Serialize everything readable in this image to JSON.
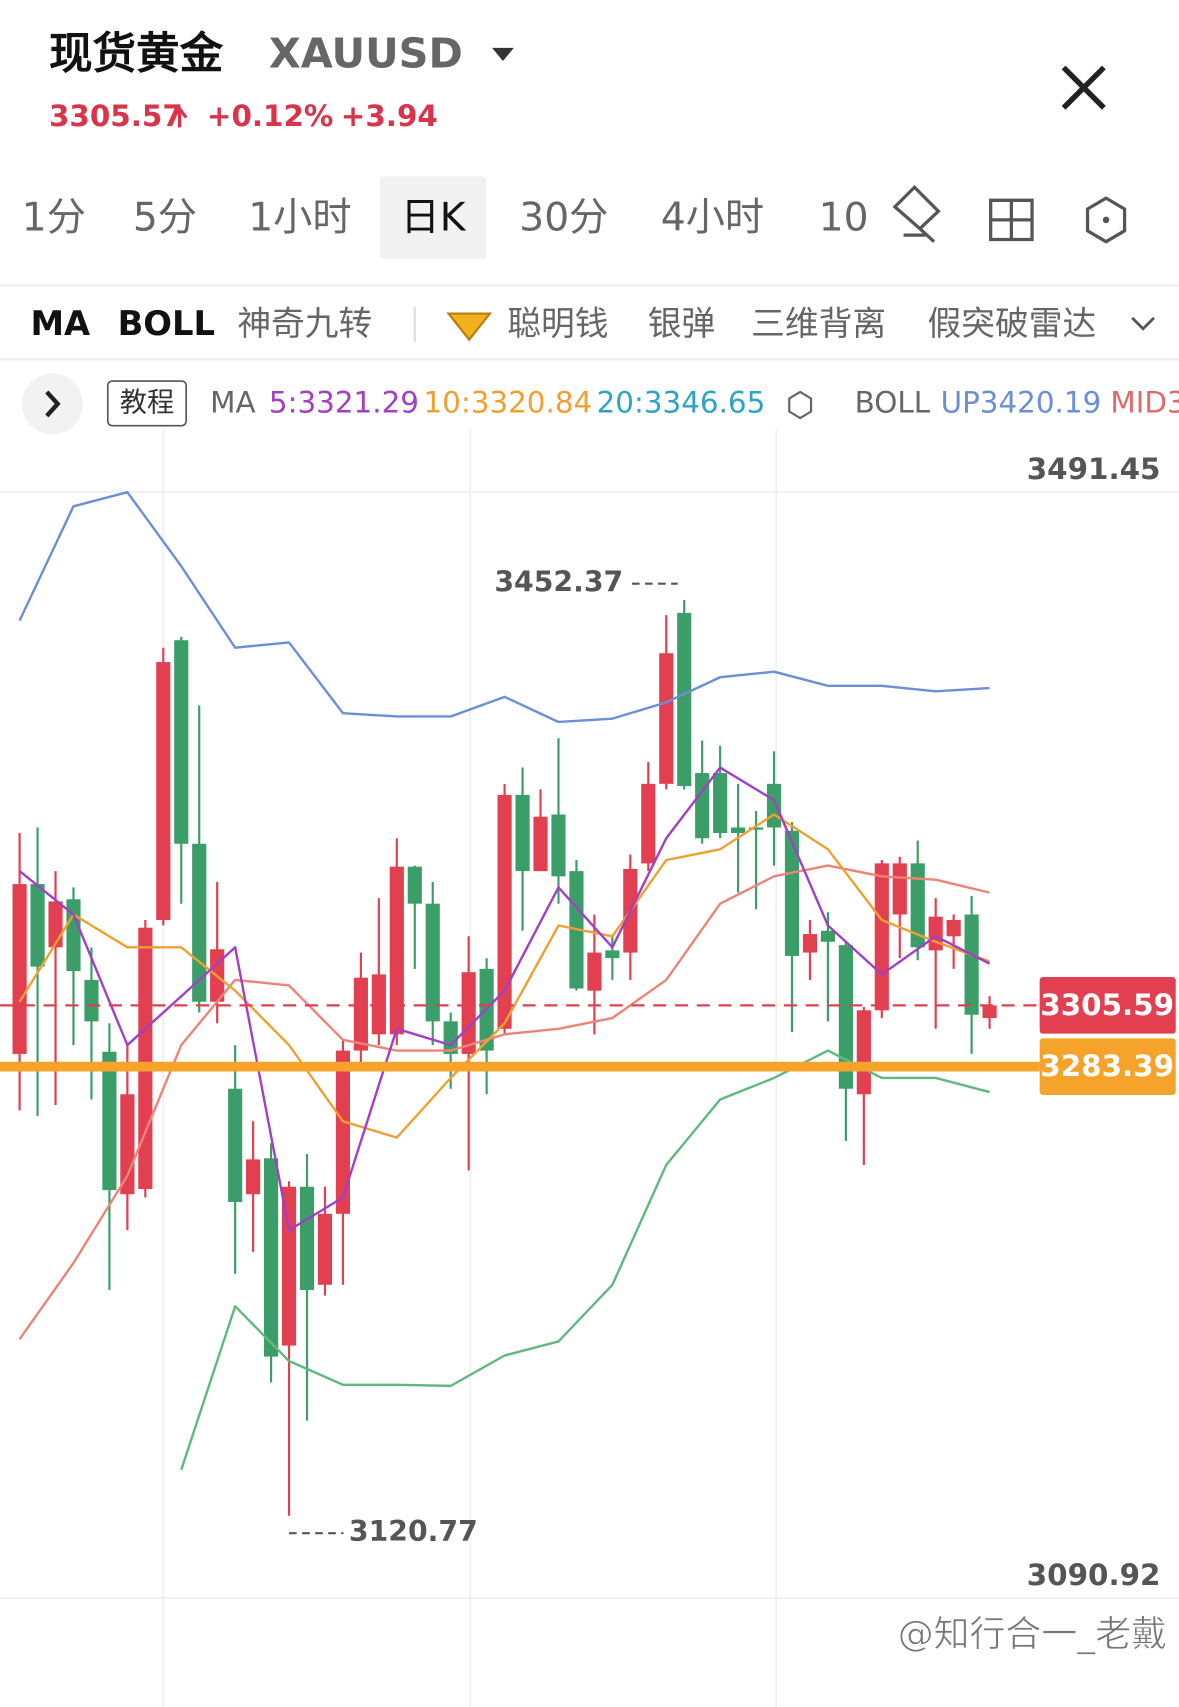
{
  "header": {
    "title": "现货黄金",
    "symbol": "XAUUSD",
    "price": "3305.57",
    "change_pct": "+0.12%",
    "change": "+3.94"
  },
  "tabs": [
    "1分",
    "5分",
    "1小时",
    "日K",
    "30分",
    "4小时",
    "10"
  ],
  "indicators": [
    "MA",
    "BOLL",
    "神奇九转",
    "聪明钱",
    "银弹",
    "三维背离",
    "假突破雷达"
  ],
  "legend_bar": {
    "tutorial": "教程",
    "ma_label": "MA",
    "ma": [
      {
        "label": "5:3321.29",
        "color": "#a23fc4"
      },
      {
        "label": "10:3320.84",
        "color": "#f0a030"
      },
      {
        "label": "20:3346.65",
        "color": "#2ea3c4"
      }
    ],
    "boll_label": "BOLL",
    "boll": [
      {
        "label": "UP3420.19",
        "color": "#6b8fd6"
      },
      {
        "label": "MID3",
        "color": "#e06a6a"
      }
    ]
  },
  "chart_data": {
    "type": "candlestick",
    "up_color": "#e23f51",
    "down_color": "#3b9e68",
    "ylim": [
      3051.52,
      3511.95
    ],
    "yticks": [
      3090.92,
      3491.45
    ],
    "ohlc": [
      [
        3288.0,
        3368.0,
        3267.5,
        3349.5
      ],
      [
        3349.5,
        3370.0,
        3265.5,
        3319.6
      ],
      [
        3326.6,
        3354.2,
        3269.5,
        3343.2
      ],
      [
        3344.0,
        3348.3,
        3291.2,
        3318.0
      ],
      [
        3314.8,
        3326.6,
        3271.5,
        3299.8
      ],
      [
        3288.8,
        3299.1,
        3202.5,
        3238.7
      ],
      [
        3237.2,
        3291.2,
        3224.2,
        3273.4
      ],
      [
        3239.1,
        3336.5,
        3236.0,
        3333.7
      ],
      [
        3336.5,
        3435.1,
        3334.5,
        3429.9
      ],
      [
        3437.8,
        3439.0,
        3342.4,
        3364.1
      ],
      [
        3364.1,
        3414.2,
        3303.0,
        3306.9
      ],
      [
        3306.9,
        3350.3,
        3299.1,
        3325.9
      ],
      [
        3275.4,
        3291.2,
        3208.4,
        3234.4
      ],
      [
        3237.2,
        3263.6,
        3216.3,
        3249.8
      ],
      [
        3250.2,
        3255.7,
        3169.0,
        3178.4
      ],
      [
        3182.4,
        3241.9,
        3120.77,
        3239.9
      ],
      [
        3239.9,
        3251.7,
        3155.2,
        3202.5
      ],
      [
        3204.4,
        3239.9,
        3200.5,
        3230.1
      ],
      [
        3230.1,
        3293.1,
        3204.4,
        3289.2
      ],
      [
        3289.2,
        3324.7,
        3283.3,
        3315.6
      ],
      [
        3295.1,
        3344.4,
        3291.2,
        3316.8
      ],
      [
        3295.1,
        3366.1,
        3291.2,
        3355.8
      ],
      [
        3355.8,
        3356.2,
        3318.8,
        3342.4
      ],
      [
        3342.4,
        3350.3,
        3291.2,
        3299.8
      ],
      [
        3299.8,
        3303.0,
        3275.4,
        3288.0
      ],
      [
        3288.0,
        3330.6,
        3245.8,
        3317.6
      ],
      [
        3318.8,
        3322.7,
        3273.4,
        3289.2
      ],
      [
        3297.1,
        3385.8,
        3295.1,
        3381.8
      ],
      [
        3381.8,
        3391.7,
        3332.6,
        3354.2
      ],
      [
        3354.2,
        3383.8,
        3354.2,
        3373.9
      ],
      [
        3374.7,
        3402.3,
        3342.4,
        3352.3
      ],
      [
        3354.2,
        3358.2,
        3310.9,
        3311.7
      ],
      [
        3310.9,
        3338.5,
        3295.1,
        3324.7
      ],
      [
        3325.5,
        3330.6,
        3314.8,
        3322.7
      ],
      [
        3324.7,
        3360.2,
        3314.8,
        3355.0
      ],
      [
        3357.0,
        3393.7,
        3354.2,
        3385.8
      ],
      [
        3385.8,
        3446.9,
        3383.8,
        3433.1
      ],
      [
        3447.7,
        3452.37,
        3383.8,
        3385.0
      ],
      [
        3389.7,
        3401.5,
        3364.1,
        3366.1
      ],
      [
        3389.7,
        3399.6,
        3366.1,
        3368.0
      ],
      [
        3370.0,
        3385.8,
        3346.4,
        3368.0
      ],
      [
        3370.0,
        3375.9,
        3340.4,
        3369.2
      ],
      [
        3385.8,
        3397.6,
        3356.2,
        3370.0
      ],
      [
        3368.8,
        3372.0,
        3295.9,
        3323.5
      ],
      [
        3324.7,
        3336.5,
        3314.8,
        3331.4
      ],
      [
        3332.6,
        3339.3,
        3299.8,
        3328.6
      ],
      [
        3327.4,
        3328.6,
        3256.5,
        3275.4
      ],
      [
        3273.4,
        3305.0,
        3247.8,
        3303.8
      ],
      [
        3303.8,
        3358.2,
        3301.0,
        3357.0
      ],
      [
        3338.5,
        3359.4,
        3322.7,
        3357.0
      ],
      [
        3357.0,
        3365.3,
        3321.9,
        3326.6
      ],
      [
        3325.5,
        3344.4,
        3297.1,
        3337.7
      ],
      [
        3330.6,
        3338.5,
        3318.8,
        3336.5
      ],
      [
        3338.5,
        3345.2,
        3288.0,
        3302.2
      ],
      [
        3301.0,
        3308.9,
        3297.1,
        3305.57
      ]
    ],
    "series": [
      {
        "color": "#6b8fd6",
        "x": [
          0,
          3,
          6,
          9,
          12,
          15,
          18,
          21,
          24,
          27,
          30,
          33,
          36,
          39,
          42,
          45,
          48,
          51,
          54
        ],
        "values": [
          3444.9,
          3486.3,
          3491.4,
          3464.6,
          3435.1,
          3437.0,
          3411.4,
          3410.2,
          3410.2,
          3417.3,
          3408.2,
          3409.4,
          3415.3,
          3424.4,
          3426.4,
          3421.3,
          3421.3,
          3419.3,
          3420.5
        ]
      },
      {
        "color": "#5fb97e",
        "x": [
          0,
          3,
          6,
          9,
          12,
          15,
          18,
          21,
          24,
          27,
          30,
          33,
          36,
          39,
          42,
          45,
          48,
          51,
          54
        ],
        "values": [
          null,
          null,
          null,
          3137.4,
          3196.6,
          3176.8,
          3168.2,
          3168.2,
          3167.8,
          3178.8,
          3183.9,
          3204.4,
          3247.8,
          3271.5,
          3279.3,
          3289.2,
          3279.3,
          3279.3,
          3274.2
        ]
      },
      {
        "color": "#ec8478",
        "x": [
          0,
          3,
          6,
          9,
          12,
          15,
          18,
          21,
          24,
          27,
          30,
          33,
          36,
          39,
          42,
          45,
          48,
          51,
          54
        ],
        "values": [
          3184.7,
          3212.3,
          3243.9,
          3291.2,
          3314.8,
          3312.8,
          3293.1,
          3289.2,
          3289.2,
          3295.1,
          3297.1,
          3301.0,
          3314.8,
          3342.4,
          3352.3,
          3356.2,
          3352.3,
          3351.1,
          3346.4
        ]
      },
      {
        "color": "#f0a030",
        "x": [
          0,
          3,
          6,
          9,
          12,
          15,
          18,
          21,
          24,
          27,
          30,
          33,
          36,
          39,
          42,
          45,
          48,
          51,
          54
        ],
        "values": [
          3306.9,
          3338.5,
          3326.6,
          3326.6,
          3310.9,
          3291.2,
          3263.6,
          3257.7,
          3279.3,
          3299.1,
          3334.5,
          3330.6,
          3358.2,
          3362.1,
          3374.7,
          3362.1,
          3336.5,
          3328.6,
          3321.5
        ]
      },
      {
        "color": "#a23fc4",
        "x": [
          0,
          3,
          6,
          9,
          12,
          15,
          18,
          21,
          24,
          27,
          30,
          33,
          36,
          39,
          42,
          45,
          48,
          51,
          54
        ],
        "values": [
          3354.2,
          3338.5,
          3291.2,
          3308.9,
          3326.6,
          3224.2,
          3236.0,
          3297.1,
          3291.2,
          3310.9,
          3348.3,
          3326.6,
          3366.1,
          3391.7,
          3379.9,
          3334.5,
          3316.8,
          3330.6,
          3320.7
        ]
      }
    ],
    "price_lines": [
      {
        "value": 3305.59,
        "color": "#e23f51",
        "style": "dashed"
      },
      {
        "value": 3283.39,
        "color": "#f5a32a",
        "style": "solid"
      }
    ],
    "high_label": 3452.37,
    "low_label": 3120.77
  },
  "watermark": "@知行合一_老戴"
}
